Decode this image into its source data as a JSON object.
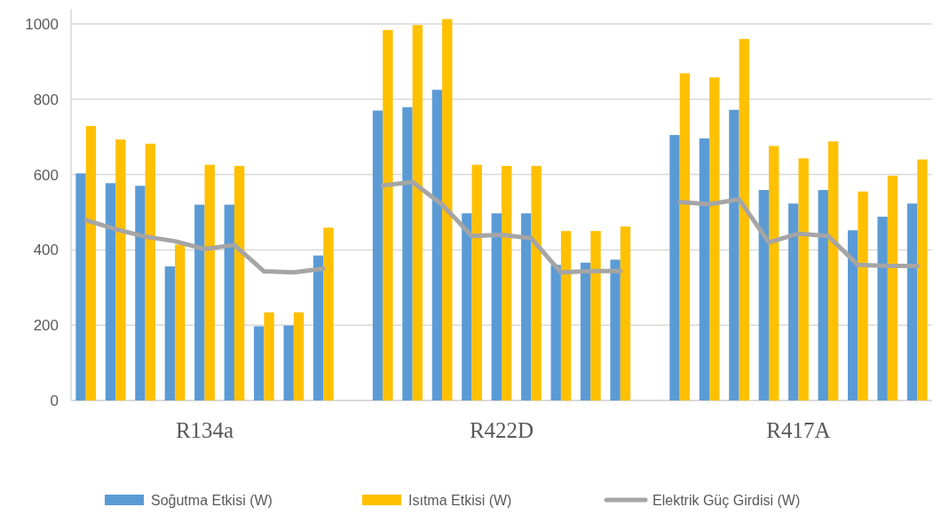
{
  "chart_data": {
    "type": "bar",
    "categories": [
      null,
      null,
      null,
      null,
      "R134a",
      null,
      null,
      null,
      null,
      null,
      null,
      null,
      null,
      null,
      "R422D",
      null,
      null,
      null,
      null,
      null,
      null,
      null,
      null,
      null,
      "R417A",
      null,
      null,
      null,
      null
    ],
    "series": [
      {
        "name": "Soğutma Etkisi (W)",
        "color": "#5b9bd5",
        "values": [
          603,
          577,
          570,
          356,
          520,
          520,
          197,
          199,
          385,
          null,
          770,
          779,
          825,
          497,
          497,
          497,
          360,
          366,
          374,
          null,
          705,
          696,
          772,
          559,
          523,
          559,
          452,
          488,
          523
        ]
      },
      {
        "name": "Isıtma Etkisi (W)",
        "color": "#ffc000",
        "values": [
          729,
          693,
          682,
          414,
          626,
          623,
          234,
          234,
          459,
          null,
          984,
          997,
          1013,
          626,
          623,
          623,
          450,
          450,
          462,
          null,
          869,
          858,
          960,
          676,
          643,
          688,
          555,
          597,
          640
        ]
      },
      {
        "name": "Elektrik Güç Girdisi (W)",
        "type": "line",
        "color": "#a5a5a5",
        "marker": "none",
        "values": [
          479,
          455,
          435,
          423,
          402,
          413,
          343,
          340,
          350,
          null,
          571,
          580,
          520,
          437,
          440,
          431,
          340,
          344,
          344,
          null,
          527,
          521,
          534,
          420,
          443,
          437,
          360,
          357,
          357
        ]
      }
    ],
    "ylim": [
      0,
      1040
    ],
    "yticks": [
      0,
      200,
      400,
      600,
      800,
      1000
    ],
    "grid": "y",
    "legend": "bottom"
  }
}
